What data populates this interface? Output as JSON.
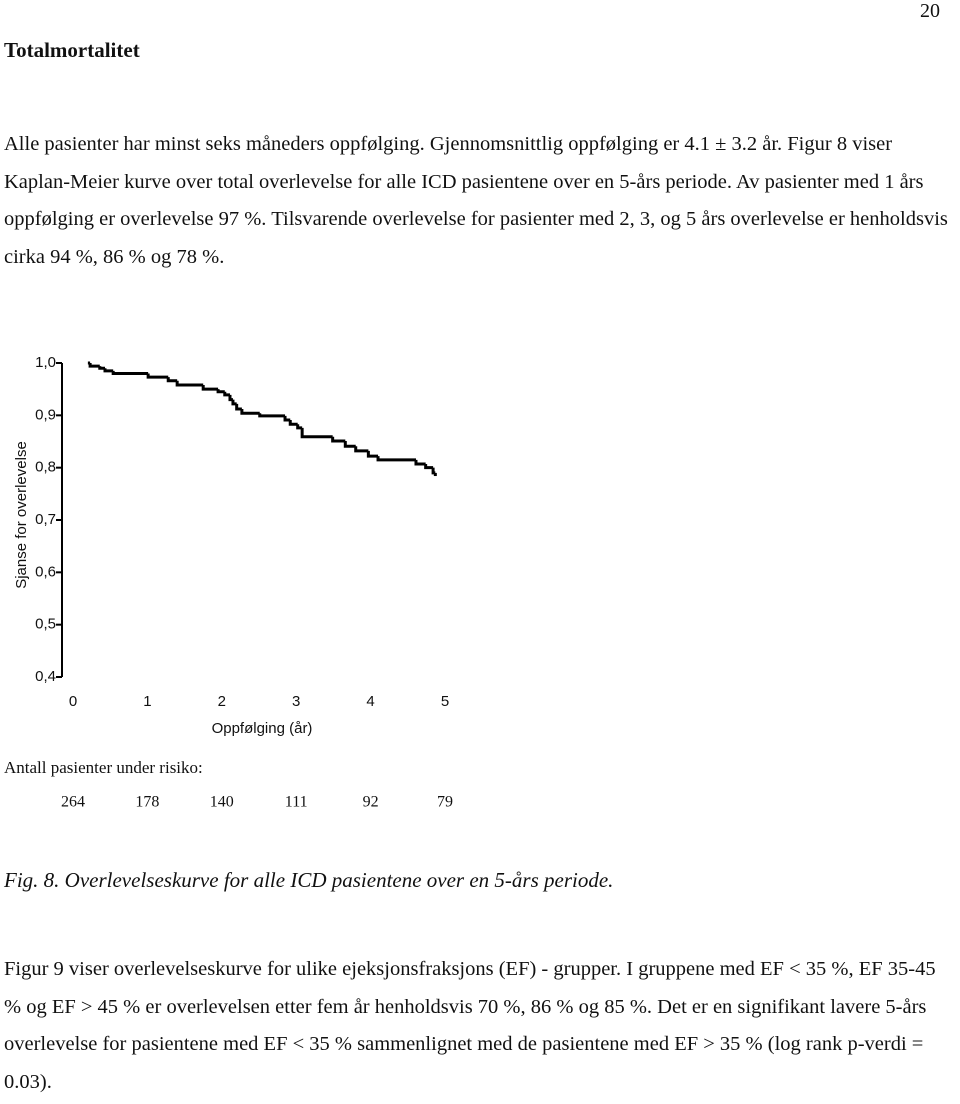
{
  "header": {
    "page_number": "20"
  },
  "heading": "Totalmortalitet",
  "paragraphs": [
    "Alle pasienter har minst seks måneders oppfølging. Gjennomsnittlig oppfølging er 4.1 ± 3.2 år. Figur 8 viser Kaplan-Meier kurve over total overlevelse for alle ICD pasientene over en 5-års periode. Av pasienter med 1 års oppfølging er overlevelse 97 %. Tilsvarende overlevelse for pasienter med 2, 3, og 5 års overlevelse er henholdsvis cirka 94 %, 86 % og 78 %.",
    "Figur 9 viser overlevelseskurve for ulike ejeksjonsfraksjons (EF) - grupper. I gruppene med EF < 35 %, EF 35-45 % og EF > 45 % er overlevelsen etter fem år henholdsvis 70 %, 86 % og 85 %. Det er en signifikant lavere 5-års overlevelse for pasientene med EF < 35 % sammenlignet med de pasientene med EF > 35 % (log rank p-verdi = 0.03)."
  ],
  "chart_data": {
    "type": "step",
    "x_label": "Oppfølging (år)",
    "y_label": "Sjanse for overlevelse",
    "color": "#000000",
    "x": [
      0.2,
      0.23,
      0.36,
      0.43,
      0.54,
      1.01,
      1.28,
      1.4,
      1.75,
      1.95,
      2.04,
      2.11,
      2.15,
      2.2,
      2.27,
      2.51,
      2.85,
      2.92,
      3.02,
      3.08,
      3.49,
      3.66,
      3.8,
      3.97,
      4.1,
      4.61,
      4.74,
      4.84,
      4.87
    ],
    "values": [
      1.0,
      0.994,
      0.99,
      0.985,
      0.98,
      0.973,
      0.966,
      0.958,
      0.95,
      0.945,
      0.939,
      0.93,
      0.922,
      0.912,
      0.904,
      0.899,
      0.891,
      0.883,
      0.876,
      0.859,
      0.851,
      0.841,
      0.832,
      0.822,
      0.815,
      0.807,
      0.8,
      0.79,
      0.784
    ],
    "xlim": [
      0,
      5
    ],
    "xticks": [
      0,
      1,
      2,
      3,
      4,
      5
    ],
    "ylim": [
      0.4,
      1.0
    ],
    "yticks": [
      {
        "value": 0.4,
        "label": "0,4"
      },
      {
        "value": 0.5,
        "label": "0,5"
      },
      {
        "value": 0.6,
        "label": "0,6"
      },
      {
        "value": 0.7,
        "label": "0,7"
      },
      {
        "value": 0.8,
        "label": "0,8"
      },
      {
        "value": 0.9,
        "label": "0,9"
      },
      {
        "value": 1.0,
        "label": "1,0"
      }
    ],
    "risk_table": {
      "label": "Antall pasienter under risiko:",
      "values": [
        264,
        178,
        140,
        111,
        92,
        79
      ]
    }
  },
  "caption": "Fig. 8. Overlevelseskurve for alle ICD pasientene over en 5-års periode."
}
